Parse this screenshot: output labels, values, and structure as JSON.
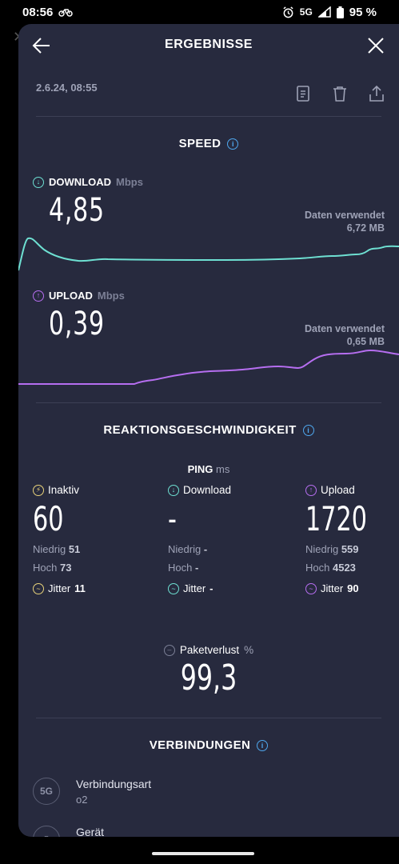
{
  "status_bar": {
    "time": "08:56",
    "network": "5G",
    "battery": "95 %"
  },
  "header": {
    "title": "ERGEBNISSE"
  },
  "result": {
    "date": "2.6.24, 08:55"
  },
  "speed": {
    "title": "SPEED",
    "download": {
      "label": "DOWNLOAD",
      "unit": "Mbps",
      "value": "4,85",
      "data_used_label": "Daten verwendet",
      "data_used": "6,72 MB",
      "color": "#6ee0d2"
    },
    "upload": {
      "label": "UPLOAD",
      "unit": "Mbps",
      "value": "0,39",
      "data_used_label": "Daten verwendet",
      "data_used": "0,65 MB",
      "color": "#b66ef0"
    }
  },
  "responsiveness": {
    "title": "REAKTIONSGESCHWINDIGKEIT",
    "ping_label": "PING",
    "ping_unit": "ms",
    "columns": [
      {
        "label": "Inaktiv",
        "value": "60",
        "low_label": "Niedrig",
        "low": "51",
        "high_label": "Hoch",
        "high": "73",
        "jitter_label": "Jitter",
        "jitter": "11",
        "color": "#e8d27a"
      },
      {
        "label": "Download",
        "value": "-",
        "low_label": "Niedrig",
        "low": "-",
        "high_label": "Hoch",
        "high": "-",
        "jitter_label": "Jitter",
        "jitter": "-",
        "color": "#6ee0d2"
      },
      {
        "label": "Upload",
        "value": "1720",
        "low_label": "Niedrig",
        "low": "559",
        "high_label": "Hoch",
        "high": "4523",
        "jitter_label": "Jitter",
        "jitter": "90",
        "color": "#b66ef0"
      }
    ],
    "packet_loss": {
      "label": "Paketverlust",
      "unit": "%",
      "value": "99,3"
    }
  },
  "connections": {
    "title": "VERBINDUNGEN",
    "items": [
      {
        "icon_text": "5G",
        "key": "Verbindungsart",
        "value": "o2"
      },
      {
        "icon_text": "",
        "key": "Gerät",
        "value": ""
      }
    ]
  }
}
